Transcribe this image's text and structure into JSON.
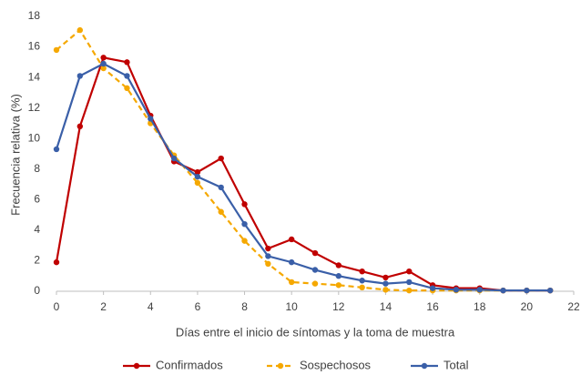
{
  "chart_data": {
    "type": "line",
    "x_label": "Días entre el inicio de síntomas y la toma de muestra",
    "y_label": "Frecuencia relativa (%)",
    "x": [
      0,
      1,
      2,
      3,
      4,
      5,
      6,
      7,
      8,
      9,
      10,
      11,
      12,
      13,
      14,
      15,
      16,
      17,
      18,
      19,
      20,
      21
    ],
    "series": [
      {
        "name": "Confirmados",
        "color": "#c00000",
        "dashed": false,
        "values": [
          1.9,
          10.8,
          15.3,
          15.0,
          11.5,
          8.5,
          7.8,
          8.7,
          5.7,
          2.8,
          3.4,
          2.5,
          1.7,
          1.3,
          0.9,
          1.3,
          0.4,
          0.2,
          0.2,
          0.05,
          0.05,
          0.05
        ]
      },
      {
        "name": "Sospechosos",
        "color": "#f5a800",
        "dashed": true,
        "values": [
          15.8,
          17.1,
          14.6,
          13.3,
          11.0,
          8.9,
          7.1,
          5.2,
          3.3,
          1.8,
          0.6,
          0.5,
          0.4,
          0.25,
          0.1,
          0.05,
          0.05,
          0.05,
          0.05,
          0.05,
          0.05,
          0.05
        ]
      },
      {
        "name": "Total",
        "color": "#3a5fa8",
        "dashed": false,
        "values": [
          9.3,
          14.1,
          14.9,
          14.1,
          11.3,
          8.7,
          7.5,
          6.8,
          4.4,
          2.3,
          1.9,
          1.4,
          1.0,
          0.7,
          0.5,
          0.6,
          0.2,
          0.1,
          0.1,
          0.05,
          0.05,
          0.05
        ]
      }
    ],
    "xlim": [
      0,
      22
    ],
    "xticks": [
      0,
      2,
      4,
      6,
      8,
      10,
      12,
      14,
      16,
      18,
      20,
      22
    ],
    "ylim": [
      0,
      18
    ],
    "yticks": [
      0,
      2,
      4,
      6,
      8,
      10,
      12,
      14,
      16,
      18
    ],
    "grid": false,
    "legend": "bottom"
  }
}
